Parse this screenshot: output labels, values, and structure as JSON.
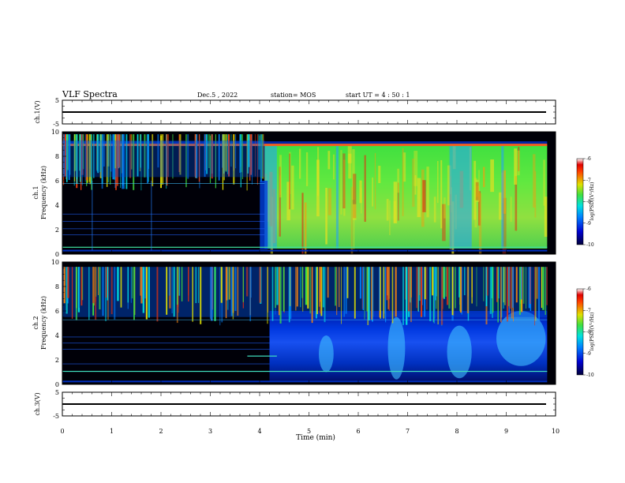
{
  "header": {
    "title": "VLF Spectra",
    "date": "Dec.5 , 2022",
    "station": "station= MOS",
    "start_ut": "start UT =  4 : 50 : 1"
  },
  "chart_data": {
    "type": "heatmap",
    "xlabel": "Time (min)",
    "xlim": [
      0,
      10
    ],
    "x_ticks": [
      "0",
      "1",
      "2",
      "3",
      "4",
      "5",
      "6",
      "7",
      "8",
      "9",
      "10"
    ],
    "data_end_min": 9.83,
    "panels": [
      {
        "id": "ch1_waveform",
        "ylabel": "ch.1(V)",
        "ylim": [
          -5,
          5
        ],
        "y_ticks": [
          "5",
          "-5"
        ],
        "trace_level": 0
      },
      {
        "id": "ch1_spectrum",
        "ylabel": "ch.1\nFrequency (kHz)",
        "ylabel_lines": [
          "ch.1",
          "Frequency (kHz)"
        ],
        "ylim": [
          0,
          10
        ],
        "y_ticks": [
          "0",
          "2",
          "4",
          "6",
          "8",
          "10"
        ],
        "colorbar": {
          "label": "log(PSD)(V²/Hz)",
          "range": [
            -10,
            -6
          ],
          "ticks": [
            "-6",
            "-7",
            "-8",
            "-9",
            "-10"
          ]
        },
        "features": {
          "onset_min": 4.1,
          "upper_cutoff_khz": 8.9,
          "band_floor_khz": 0.45
        }
      },
      {
        "id": "ch2_spectrum",
        "ylabel": "ch.2\nFrequency (kHz)",
        "ylabel_lines": [
          "ch.2",
          "Frequency (kHz)"
        ],
        "ylim": [
          0,
          10
        ],
        "y_ticks": [
          "0",
          "2",
          "4",
          "6",
          "8",
          "10"
        ],
        "colorbar": {
          "label": "log(PSD)(V²/Hz)",
          "range": [
            -10,
            -6
          ],
          "ticks": [
            "-6",
            "-7",
            "-8",
            "-9",
            "-10"
          ]
        },
        "features": {
          "onset_min": 4.2,
          "upper_cutoff_khz": 9.6
        }
      },
      {
        "id": "ch3_waveform",
        "ylabel": "ch.3(V)",
        "ylim": [
          -5,
          5
        ],
        "y_ticks": [
          "5",
          "-5"
        ],
        "trace_level": 0
      }
    ]
  }
}
